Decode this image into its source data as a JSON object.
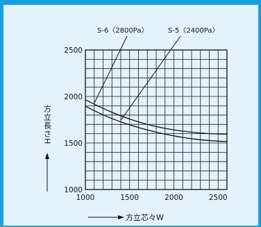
{
  "chart_data": {
    "type": "line",
    "xlabel": "方立芯々W",
    "ylabel": "方立長さH",
    "xlim": [
      1000,
      2600
    ],
    "ylim": [
      1000,
      2500
    ],
    "grid": true,
    "x_ticks": [
      1000,
      1500,
      2000,
      2500
    ],
    "y_ticks": [
      1000,
      1500,
      2000,
      2500
    ],
    "series": [
      {
        "name": "S-6〈2800Pa〉",
        "x": [
          1000,
          1200,
          1400,
          1600,
          1800,
          2000,
          2200,
          2400,
          2600
        ],
        "y": [
          1965,
          1870,
          1790,
          1725,
          1675,
          1640,
          1615,
          1600,
          1595
        ]
      },
      {
        "name": "S-5〈2400Pa〉",
        "x": [
          1000,
          1200,
          1400,
          1600,
          1800,
          2000,
          2200,
          2400,
          2600
        ],
        "y": [
          1895,
          1800,
          1725,
          1665,
          1615,
          1575,
          1545,
          1525,
          1515
        ]
      }
    ]
  }
}
